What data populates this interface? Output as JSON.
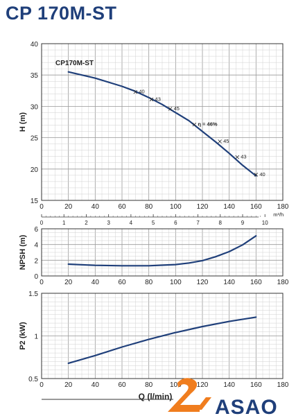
{
  "page": {
    "title": "CP 170M-ST"
  },
  "brand": {
    "name": "ASAO",
    "accent": "#f07d1e",
    "primary": "#1f3f7a"
  },
  "chart_data": [
    {
      "type": "line",
      "id": "head",
      "series_label": "CP170M-ST",
      "ylabel": "H (m)",
      "xlim": [
        0,
        180
      ],
      "ylim": [
        15,
        40
      ],
      "xticks": [
        0,
        20,
        40,
        60,
        80,
        100,
        120,
        140,
        160,
        180
      ],
      "yticks": [
        15,
        20,
        25,
        30,
        35,
        40
      ],
      "x": [
        20,
        40,
        60,
        70,
        80,
        90,
        100,
        110,
        120,
        130,
        140,
        150,
        160
      ],
      "y": [
        35.5,
        34.5,
        33.2,
        32.4,
        31.4,
        30.3,
        29.0,
        27.7,
        26.0,
        24.3,
        22.5,
        20.6,
        18.9
      ],
      "grid": true,
      "efficiency_labels": [
        {
          "x": 70,
          "y": 32.3,
          "label": "40"
        },
        {
          "x": 82,
          "y": 31.1,
          "label": "43"
        },
        {
          "x": 96,
          "y": 29.6,
          "label": "45"
        },
        {
          "x": 114,
          "y": 27.1,
          "label": "η = 46%"
        },
        {
          "x": 133,
          "y": 24.4,
          "label": "45"
        },
        {
          "x": 146,
          "y": 21.9,
          "label": "43"
        },
        {
          "x": 160,
          "y": 19.1,
          "label": "40"
        }
      ],
      "secondary_axis": {
        "unit": "m³/h",
        "ticks": [
          "0",
          "1",
          "2",
          "3",
          "4",
          "5",
          "6",
          "7",
          "8",
          "9",
          "10"
        ]
      }
    },
    {
      "type": "line",
      "id": "npsh",
      "ylabel": "NPSH (m)",
      "xlim": [
        0,
        180
      ],
      "ylim": [
        0,
        6
      ],
      "xticks": [
        0,
        20,
        40,
        60,
        80,
        100,
        120,
        140,
        160,
        180
      ],
      "yticks": [
        0,
        2,
        4,
        6
      ],
      "x": [
        20,
        40,
        60,
        80,
        100,
        110,
        120,
        130,
        140,
        150,
        160
      ],
      "y": [
        1.5,
        1.35,
        1.3,
        1.3,
        1.45,
        1.65,
        1.95,
        2.45,
        3.1,
        3.95,
        5.1
      ],
      "grid": true
    },
    {
      "type": "line",
      "id": "power",
      "ylabel": "P2 (kW)",
      "xlabel": "Q (l/min)",
      "xlim": [
        0,
        180
      ],
      "ylim": [
        0.5,
        1.5
      ],
      "xticks": [
        0,
        20,
        40,
        60,
        80,
        100,
        120,
        140,
        160,
        180
      ],
      "yticks": [
        0.5,
        1,
        1.5
      ],
      "x": [
        20,
        40,
        60,
        80,
        100,
        120,
        140,
        160
      ],
      "y": [
        0.68,
        0.77,
        0.87,
        0.96,
        1.04,
        1.11,
        1.17,
        1.22
      ],
      "grid": true
    }
  ]
}
